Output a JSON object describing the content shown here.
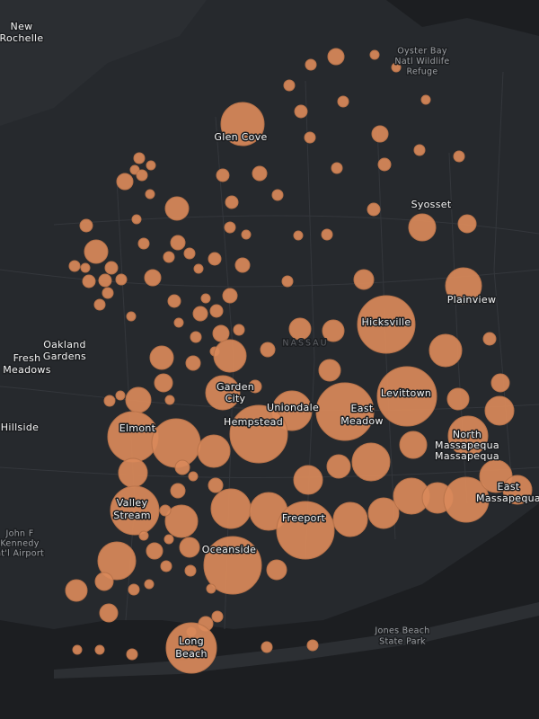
{
  "places": [
    [
      "New",
      "Rochelle"
    ],
    [
      "Oyster Bay",
      "Natl Wildlife",
      "Refuge"
    ],
    [
      "Glen Cove"
    ],
    [
      "Syosset"
    ],
    [
      "Plainview"
    ],
    [
      "Hicksville"
    ],
    [
      "NASSAU"
    ],
    [
      "Oakland",
      "Gardens"
    ],
    [
      "Fresh",
      "Meadows"
    ],
    [
      "Garden",
      "City"
    ],
    [
      "Levittown"
    ],
    [
      "Uniondale"
    ],
    [
      "East",
      "Meadow"
    ],
    [
      "Hillside"
    ],
    [
      "Hempstead"
    ],
    [
      "Elmont"
    ],
    [
      "North",
      "Massapequa",
      "Massapequa"
    ],
    [
      "East",
      "Massapequa"
    ],
    [
      "Valley",
      "Stream"
    ],
    [
      "Freeport"
    ],
    [
      "John F",
      "Kennedy",
      "nt'l Airport"
    ],
    [
      "Oceanside"
    ],
    [
      "Jones Beach",
      "State Park"
    ],
    [
      "Long",
      "Beach"
    ]
  ]
}
